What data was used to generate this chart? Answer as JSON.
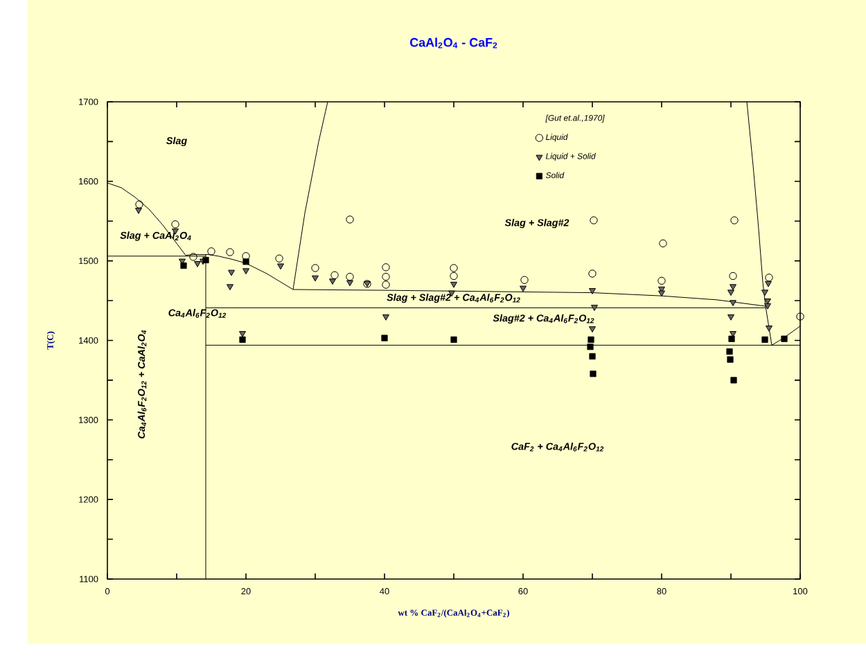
{
  "chart_data": {
    "type": "scatter",
    "title": "CaAl$_{2}$O$_{4}$ - CaF$_{2}$",
    "xlabel": "wt % CaF$_{2}$/(CaAl$_{2}$O$_{4}$+CaF$_{2}$)",
    "ylabel": "T(C)",
    "legend_title": "[Gut et.al.,1970]",
    "legend": "top right",
    "xlim": [
      0,
      100
    ],
    "ylim": [
      1100,
      1700
    ],
    "xticks": [
      0,
      {
        "value": 10,
        "label": null
      },
      20,
      {
        "value": 30,
        "label": null
      },
      40,
      {
        "value": 50,
        "label": null
      },
      60,
      {
        "value": 70,
        "label": null
      },
      80,
      {
        "value": 90,
        "label": null
      },
      100
    ],
    "yticks": [
      1100,
      {
        "value": 1150,
        "label": null
      },
      1200,
      {
        "value": 1250,
        "label": null
      },
      1300,
      {
        "value": 1350,
        "label": null
      },
      1400,
      {
        "value": 1450,
        "label": null
      },
      1500,
      {
        "value": 1550,
        "label": null
      },
      1600,
      {
        "value": 1650,
        "label": null
      },
      1700
    ],
    "annotations": [
      "Slag",
      "Slag + CaAl$_{2}$O$_{4}$",
      "Ca$_{4}$Al$_{6}$F$_{2}$O$_{12}$",
      "Ca$_{4}$Al$_{6}$F$_{2}$O$_{12}$ + CaAl$_{2}$O$_{4}$",
      "Slag + Slag#2",
      "Slag + Slag#2 + Ca$_{4}$Al$_{6}$F$_{2}$O$_{12}$",
      "Slag#2 + Ca$_{4}$Al$_{6}$F$_{2}$O$_{12}$",
      "CaF$_{2}$ + Ca$_{4}$Al$_{6}$F$_{2}$O$_{12}$"
    ],
    "series": [
      {
        "type": "line",
        "color": "#000000",
        "marker": "none",
        "line_style": "solid",
        "x": [
          0,
          2,
          4,
          6,
          8,
          10,
          11.3,
          12.5,
          14.5,
          16,
          18,
          20,
          23,
          26.8
        ],
        "values": [
          1598,
          1592,
          1580,
          1565,
          1545,
          1522,
          1507,
          1508,
          1508,
          1506,
          1502,
          1497,
          1484,
          1464
        ]
      },
      {
        "type": "line",
        "color": "#000000",
        "marker": "none",
        "line_style": "solid",
        "x": [
          26.8,
          28.5,
          30.5,
          31.8
        ],
        "values": [
          1464,
          1560,
          1650,
          1700
        ]
      },
      {
        "type": "line",
        "color": "#000000",
        "marker": "none",
        "line_style": "solid",
        "x": [
          92.3,
          93.2,
          94,
          94.6,
          95,
          95.9,
          97.6,
          100
        ],
        "values": [
          1700,
          1620,
          1540,
          1473,
          1443,
          1394,
          1403,
          1418
        ]
      },
      {
        "type": "line",
        "color": "#000000",
        "marker": "none",
        "line_style": "solid",
        "x": [
          26.8,
          40,
          60,
          70,
          80,
          88,
          95
        ],
        "values": [
          1464,
          1463,
          1461,
          1460,
          1456,
          1451,
          1443
        ]
      },
      {
        "type": "line",
        "color": "#000000",
        "marker": "none",
        "line_style": "solid",
        "x": [
          14.2,
          95
        ],
        "values": [
          1441,
          1441
        ]
      },
      {
        "type": "line",
        "color": "#000000",
        "marker": "none",
        "line_style": "solid",
        "x": [
          14.2,
          100
        ],
        "values": [
          1394,
          1394
        ]
      },
      {
        "type": "line",
        "color": "#000000",
        "marker": "none",
        "line_style": "solid",
        "x": [
          0,
          14.2
        ],
        "values": [
          1506,
          1506
        ]
      },
      {
        "type": "line",
        "color": "#000000",
        "marker": "none",
        "line_style": "solid",
        "x": [
          14.2,
          14.2
        ],
        "values": [
          1100,
          1508
        ]
      },
      {
        "name": "Liquid",
        "color": "#000000",
        "marker": "circle",
        "x": [
          4.6,
          9.8,
          12.4,
          15.0,
          17.7,
          20.0,
          24.8,
          30.0,
          32.8,
          35.0,
          35.0,
          37.5,
          40.2,
          40.2,
          40.2,
          50.0,
          50.0,
          60.2,
          70.2,
          70.0,
          80.2,
          80.0,
          90.5,
          90.3,
          95.5,
          100
        ],
        "values": [
          1571,
          1546,
          1505,
          1512,
          1511,
          1506,
          1503,
          1491,
          1482,
          1480,
          1552,
          1471,
          1492,
          1480,
          1470,
          1491,
          1481,
          1476,
          1551,
          1484,
          1522,
          1475,
          1551,
          1481,
          1479,
          1430
        ]
      },
      {
        "name": "Liquid + Solid",
        "color": "#000000",
        "marker": "triangle",
        "x": [
          4.5,
          9.8,
          10.8,
          13.0,
          13.8,
          17.9,
          17.7,
          20,
          19.5,
          25,
          30,
          32.5,
          35,
          37.5,
          40.2,
          50,
          49.7,
          60,
          70,
          70.3,
          70,
          80,
          80,
          90.3,
          90,
          90.3,
          90,
          90.3,
          94.9,
          95.4,
          95.3,
          95.3,
          95.5
        ],
        "values": [
          1564,
          1538,
          1500,
          1497,
          1500,
          1486,
          1468,
          1488,
          1409,
          1494,
          1479,
          1475,
          1473,
          1472,
          1430,
          1471,
          1460,
          1466,
          1463,
          1442,
          1415,
          1465,
          1460,
          1468,
          1461,
          1448,
          1430,
          1409,
          1461,
          1472,
          1450,
          1444,
          1416
        ]
      },
      {
        "name": "Solid",
        "color": "#000000",
        "marker": "square",
        "x": [
          11,
          14.2,
          20,
          19.5,
          40,
          50,
          69.8,
          69.7,
          70,
          70.1,
          89.8,
          90.1,
          89.9,
          90.4,
          94.9,
          97.7
        ],
        "values": [
          1494,
          1501,
          1499,
          1401,
          1403,
          1401,
          1401,
          1392,
          1380,
          1358,
          1386,
          1402,
          1376,
          1350,
          1401,
          1402
        ]
      }
    ]
  }
}
